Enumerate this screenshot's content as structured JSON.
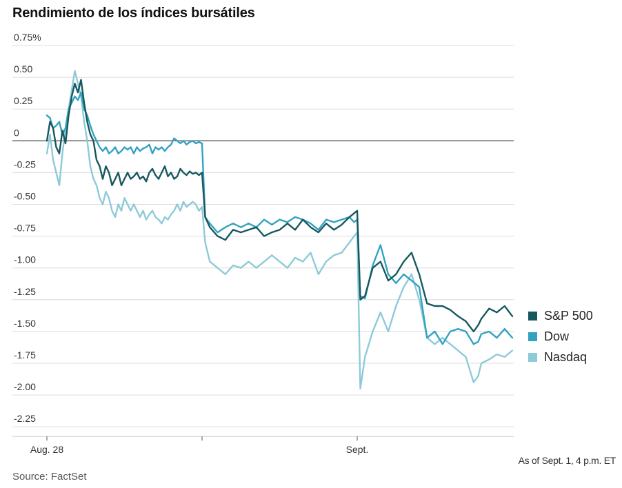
{
  "chart_data": {
    "type": "line",
    "title": "Rendimiento de los índices bursátiles",
    "source": "Source: FactSet",
    "note": "As of Sept. 1, 4 p.m. ET",
    "ylim": [
      -2.25,
      0.75
    ],
    "yticks": [
      {
        "value": 0.75,
        "label": "0.75%"
      },
      {
        "value": 0.5,
        "label": "0.50"
      },
      {
        "value": 0.25,
        "label": "0.25"
      },
      {
        "value": 0,
        "label": "0"
      },
      {
        "value": -0.25,
        "label": "-0.25"
      },
      {
        "value": -0.5,
        "label": "-0.50"
      },
      {
        "value": -0.75,
        "label": "-0.75"
      },
      {
        "value": -1.0,
        "label": "-1.00"
      },
      {
        "value": -1.25,
        "label": "-1.25"
      },
      {
        "value": -1.5,
        "label": "-1.50"
      },
      {
        "value": -1.75,
        "label": "-1.75"
      },
      {
        "value": -2.0,
        "label": "-2.00"
      },
      {
        "value": -2.25,
        "label": "-2.25"
      }
    ],
    "xlim": [
      0,
      3
    ],
    "xticks": [
      {
        "value": 0,
        "label": "Aug. 28"
      },
      {
        "value": 1,
        "label": ""
      },
      {
        "value": 2,
        "label": "Sept."
      }
    ],
    "grid": true,
    "legend_position": "right",
    "series": [
      {
        "name": "S&P 500",
        "color": "#17585f",
        "x": [
          0,
          0.02,
          0.04,
          0.06,
          0.08,
          0.1,
          0.12,
          0.14,
          0.16,
          0.18,
          0.2,
          0.22,
          0.24,
          0.26,
          0.28,
          0.3,
          0.32,
          0.34,
          0.36,
          0.38,
          0.4,
          0.42,
          0.44,
          0.46,
          0.48,
          0.5,
          0.52,
          0.54,
          0.56,
          0.58,
          0.6,
          0.62,
          0.64,
          0.66,
          0.68,
          0.7,
          0.72,
          0.74,
          0.76,
          0.78,
          0.8,
          0.82,
          0.84,
          0.86,
          0.88,
          0.9,
          0.92,
          0.94,
          0.96,
          0.98,
          1.0,
          1.02,
          1.05,
          1.1,
          1.15,
          1.2,
          1.25,
          1.3,
          1.35,
          1.4,
          1.45,
          1.5,
          1.55,
          1.6,
          1.65,
          1.7,
          1.75,
          1.8,
          1.85,
          1.9,
          1.95,
          1.98,
          2.0,
          2.02,
          2.05,
          2.1,
          2.15,
          2.2,
          2.25,
          2.3,
          2.35,
          2.4,
          2.45,
          2.5,
          2.55,
          2.6,
          2.65,
          2.7,
          2.75,
          2.78,
          2.8,
          2.85,
          2.9,
          2.95,
          3.0
        ],
        "y": [
          0,
          0.15,
          0.1,
          -0.05,
          -0.1,
          0.08,
          -0.02,
          0.2,
          0.35,
          0.45,
          0.38,
          0.48,
          0.3,
          0.15,
          0.05,
          0.0,
          -0.15,
          -0.2,
          -0.3,
          -0.2,
          -0.25,
          -0.35,
          -0.3,
          -0.25,
          -0.35,
          -0.3,
          -0.25,
          -0.3,
          -0.28,
          -0.25,
          -0.3,
          -0.28,
          -0.32,
          -0.25,
          -0.22,
          -0.27,
          -0.3,
          -0.25,
          -0.2,
          -0.28,
          -0.25,
          -0.3,
          -0.28,
          -0.22,
          -0.25,
          -0.27,
          -0.24,
          -0.26,
          -0.25,
          -0.27,
          -0.25,
          -0.6,
          -0.68,
          -0.75,
          -0.78,
          -0.7,
          -0.72,
          -0.7,
          -0.68,
          -0.75,
          -0.72,
          -0.7,
          -0.65,
          -0.7,
          -0.62,
          -0.68,
          -0.72,
          -0.65,
          -0.7,
          -0.66,
          -0.6,
          -0.57,
          -0.55,
          -1.25,
          -1.22,
          -1.0,
          -0.95,
          -1.1,
          -1.05,
          -0.95,
          -0.88,
          -1.05,
          -1.28,
          -1.3,
          -1.3,
          -1.33,
          -1.38,
          -1.42,
          -1.5,
          -1.45,
          -1.4,
          -1.32,
          -1.35,
          -1.3,
          -1.38
        ]
      },
      {
        "name": "Dow",
        "color": "#33a2c1",
        "x": [
          0,
          0.02,
          0.04,
          0.06,
          0.08,
          0.1,
          0.12,
          0.14,
          0.16,
          0.18,
          0.2,
          0.22,
          0.24,
          0.26,
          0.28,
          0.3,
          0.32,
          0.34,
          0.36,
          0.38,
          0.4,
          0.42,
          0.44,
          0.46,
          0.48,
          0.5,
          0.52,
          0.54,
          0.56,
          0.58,
          0.6,
          0.62,
          0.64,
          0.66,
          0.68,
          0.7,
          0.72,
          0.74,
          0.76,
          0.78,
          0.8,
          0.82,
          0.84,
          0.86,
          0.88,
          0.9,
          0.92,
          0.94,
          0.96,
          0.98,
          1.0,
          1.02,
          1.05,
          1.1,
          1.15,
          1.2,
          1.25,
          1.3,
          1.35,
          1.4,
          1.45,
          1.5,
          1.55,
          1.6,
          1.65,
          1.7,
          1.75,
          1.8,
          1.85,
          1.9,
          1.95,
          1.98,
          2.0,
          2.02,
          2.05,
          2.1,
          2.15,
          2.2,
          2.25,
          2.3,
          2.35,
          2.4,
          2.45,
          2.5,
          2.55,
          2.6,
          2.65,
          2.7,
          2.75,
          2.78,
          2.8,
          2.85,
          2.9,
          2.95,
          3.0
        ],
        "y": [
          0.2,
          0.18,
          0.1,
          0.12,
          0.15,
          0.05,
          0.1,
          0.25,
          0.3,
          0.35,
          0.32,
          0.38,
          0.25,
          0.2,
          0.12,
          0.05,
          0.0,
          -0.05,
          -0.08,
          -0.05,
          -0.1,
          -0.08,
          -0.05,
          -0.1,
          -0.08,
          -0.05,
          -0.07,
          -0.05,
          -0.1,
          -0.05,
          -0.08,
          -0.06,
          -0.05,
          -0.03,
          -0.1,
          -0.05,
          -0.07,
          -0.05,
          -0.08,
          -0.05,
          -0.03,
          0.02,
          0.0,
          -0.02,
          0.0,
          -0.03,
          -0.01,
          0.0,
          -0.02,
          -0.01,
          -0.02,
          -0.6,
          -0.65,
          -0.72,
          -0.68,
          -0.65,
          -0.68,
          -0.65,
          -0.68,
          -0.62,
          -0.66,
          -0.62,
          -0.64,
          -0.6,
          -0.62,
          -0.65,
          -0.7,
          -0.62,
          -0.64,
          -0.62,
          -0.6,
          -0.64,
          -0.62,
          -1.22,
          -1.24,
          -0.98,
          -0.82,
          -1.05,
          -1.12,
          -1.05,
          -1.1,
          -1.15,
          -1.55,
          -1.5,
          -1.6,
          -1.5,
          -1.48,
          -1.5,
          -1.6,
          -1.58,
          -1.52,
          -1.5,
          -1.55,
          -1.48,
          -1.55
        ]
      },
      {
        "name": "Nasdaq",
        "color": "#8ecad8",
        "x": [
          0,
          0.02,
          0.04,
          0.06,
          0.08,
          0.1,
          0.12,
          0.14,
          0.16,
          0.18,
          0.2,
          0.22,
          0.24,
          0.26,
          0.28,
          0.3,
          0.32,
          0.34,
          0.36,
          0.38,
          0.4,
          0.42,
          0.44,
          0.46,
          0.48,
          0.5,
          0.52,
          0.54,
          0.56,
          0.58,
          0.6,
          0.62,
          0.64,
          0.66,
          0.68,
          0.7,
          0.72,
          0.74,
          0.76,
          0.78,
          0.8,
          0.82,
          0.84,
          0.86,
          0.88,
          0.9,
          0.92,
          0.94,
          0.96,
          0.98,
          1.0,
          1.02,
          1.05,
          1.1,
          1.15,
          1.2,
          1.25,
          1.3,
          1.35,
          1.4,
          1.45,
          1.5,
          1.55,
          1.6,
          1.65,
          1.7,
          1.75,
          1.8,
          1.85,
          1.9,
          1.95,
          1.98,
          2.0,
          2.02,
          2.05,
          2.1,
          2.15,
          2.2,
          2.25,
          2.3,
          2.35,
          2.4,
          2.45,
          2.5,
          2.55,
          2.6,
          2.65,
          2.7,
          2.75,
          2.78,
          2.8,
          2.85,
          2.9,
          2.95,
          3.0
        ],
        "y": [
          -0.1,
          0.05,
          -0.15,
          -0.25,
          -0.35,
          -0.1,
          0.1,
          0.25,
          0.4,
          0.55,
          0.45,
          0.35,
          0.15,
          0.0,
          -0.2,
          -0.3,
          -0.35,
          -0.45,
          -0.5,
          -0.4,
          -0.45,
          -0.55,
          -0.6,
          -0.5,
          -0.55,
          -0.45,
          -0.5,
          -0.55,
          -0.5,
          -0.55,
          -0.6,
          -0.55,
          -0.62,
          -0.58,
          -0.55,
          -0.6,
          -0.62,
          -0.65,
          -0.6,
          -0.62,
          -0.58,
          -0.55,
          -0.5,
          -0.55,
          -0.48,
          -0.52,
          -0.5,
          -0.48,
          -0.5,
          -0.55,
          -0.52,
          -0.8,
          -0.95,
          -1.0,
          -1.05,
          -0.98,
          -1.0,
          -0.95,
          -1.0,
          -0.95,
          -0.9,
          -0.95,
          -1.0,
          -0.92,
          -0.95,
          -0.88,
          -1.05,
          -0.95,
          -0.9,
          -0.88,
          -0.8,
          -0.75,
          -0.72,
          -1.95,
          -1.7,
          -1.5,
          -1.35,
          -1.5,
          -1.3,
          -1.15,
          -1.05,
          -1.25,
          -1.55,
          -1.6,
          -1.55,
          -1.6,
          -1.65,
          -1.7,
          -1.9,
          -1.85,
          -1.75,
          -1.72,
          -1.68,
          -1.7,
          -1.65
        ]
      }
    ]
  }
}
